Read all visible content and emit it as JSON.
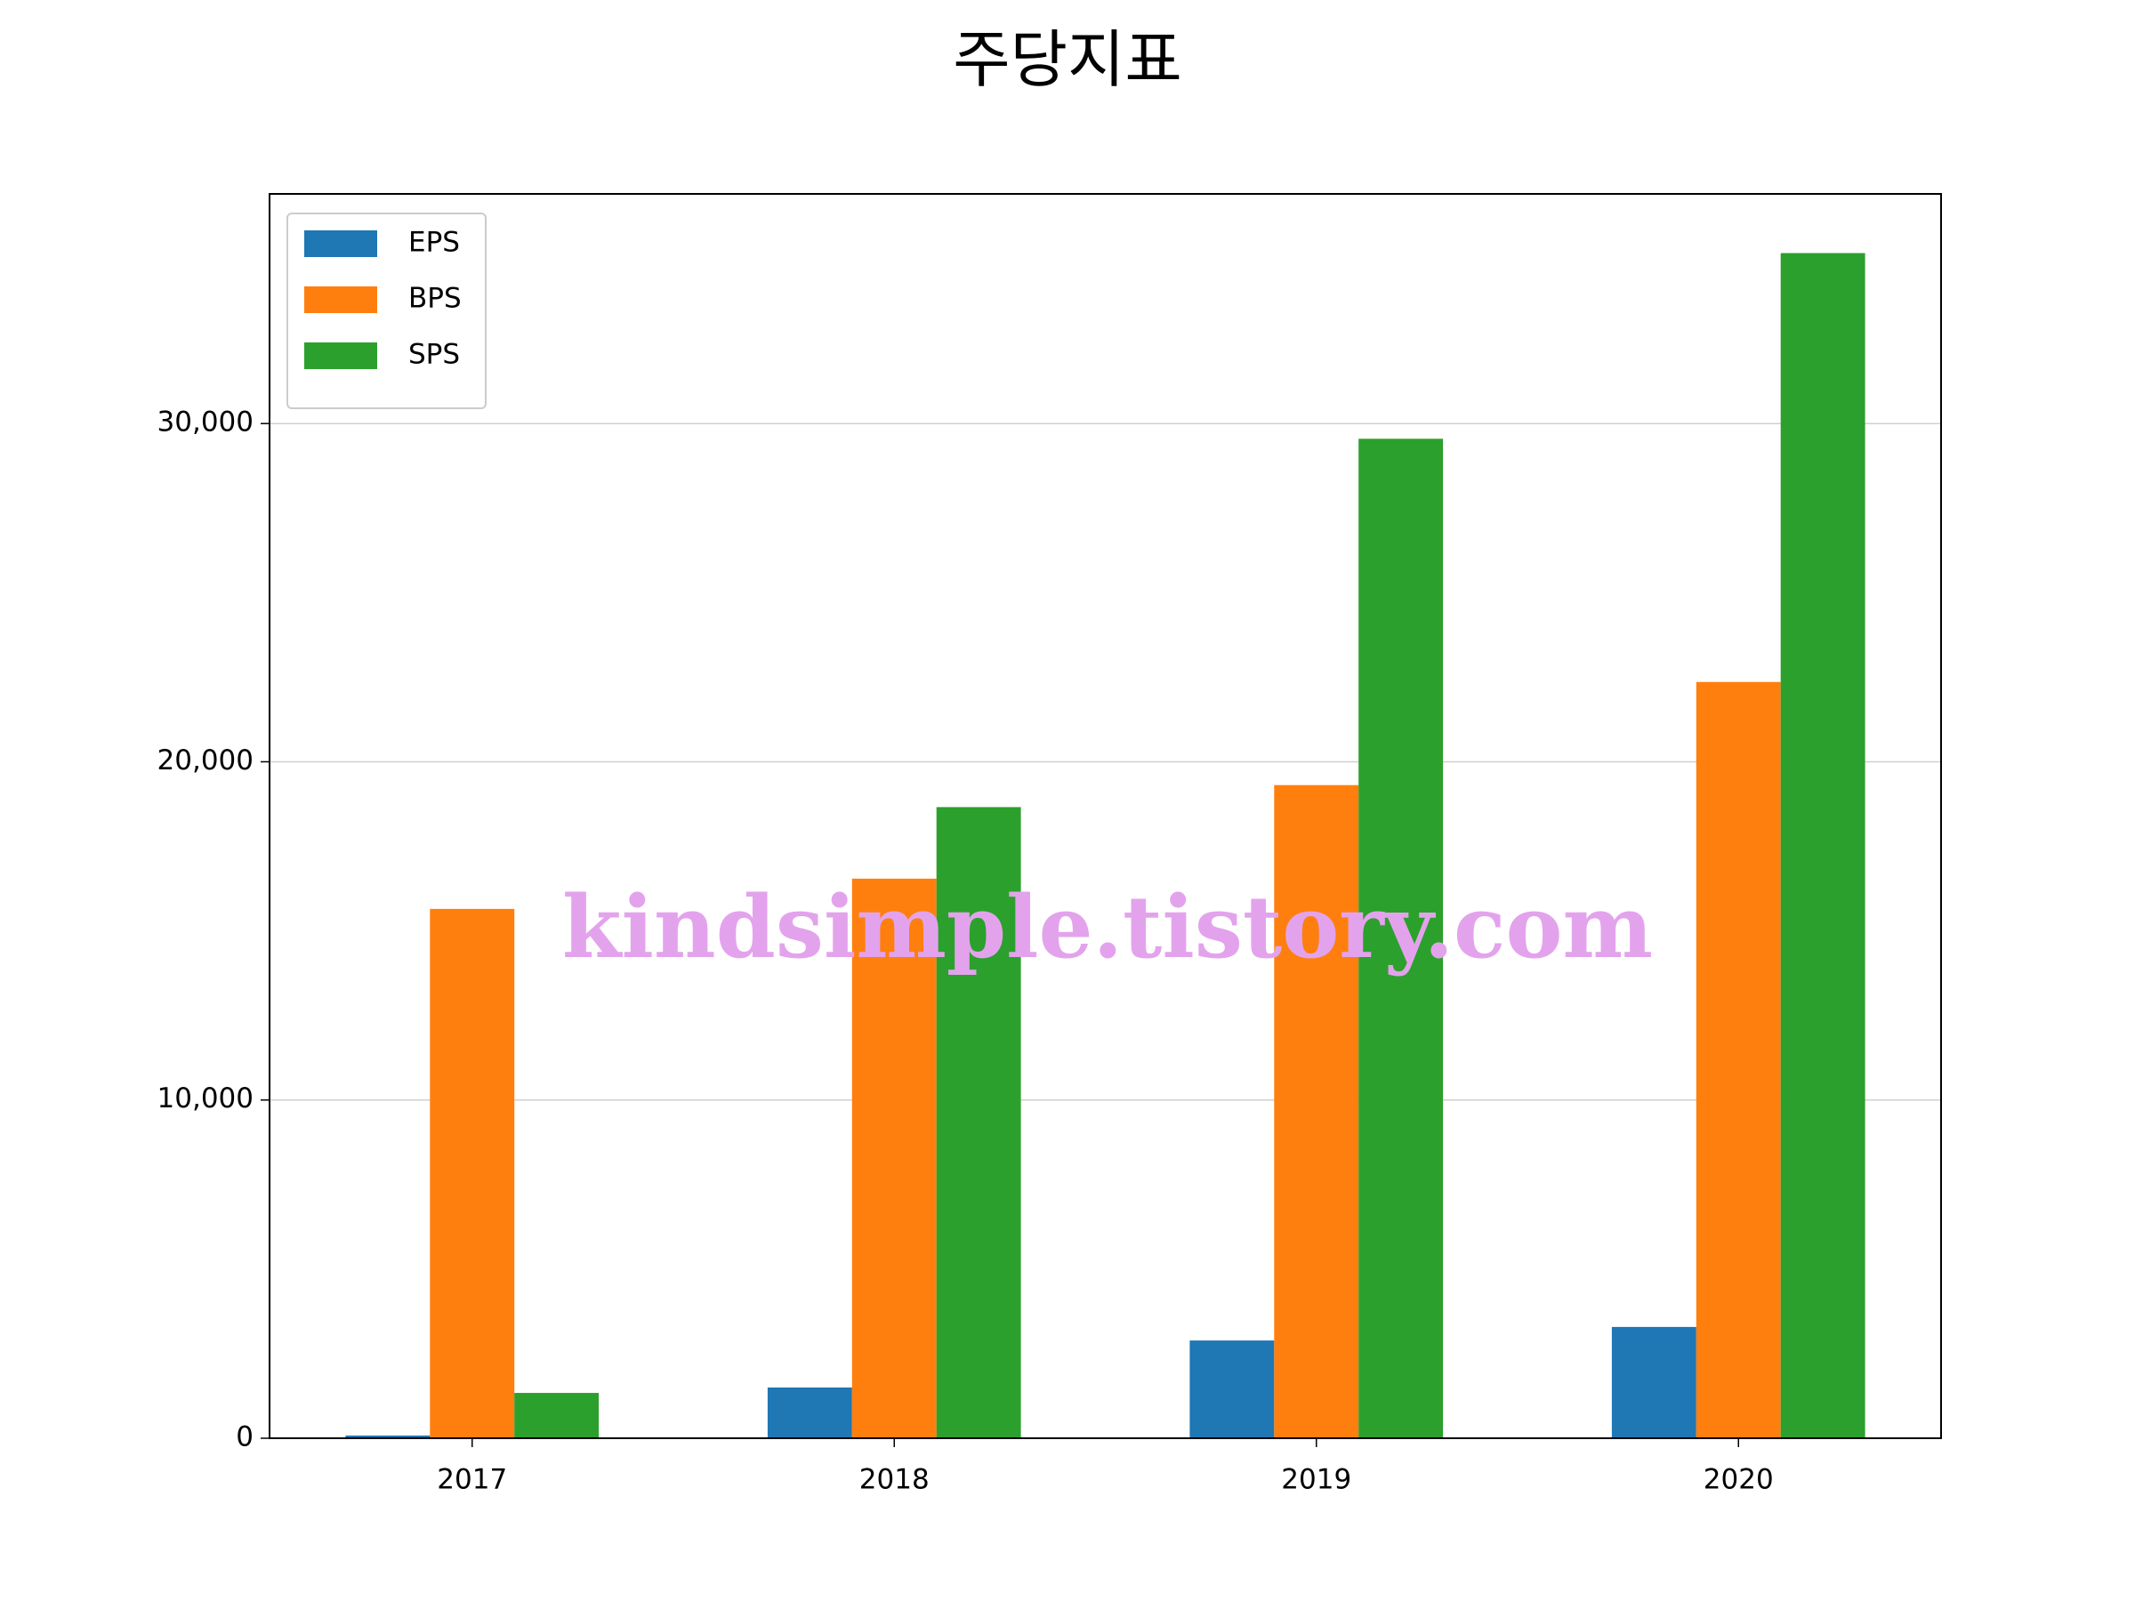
{
  "chart_data": {
    "type": "bar",
    "title": "주당지표",
    "categories": [
      "2017",
      "2018",
      "2019",
      "2020"
    ],
    "series": [
      {
        "name": "EPS",
        "color": "#1f77b4",
        "values": [
          80,
          1500,
          2890,
          3290
        ]
      },
      {
        "name": "BPS",
        "color": "#ff7f0e",
        "values": [
          15650,
          16545,
          19310,
          22360
        ]
      },
      {
        "name": "SPS",
        "color": "#2ca02c",
        "values": [
          1340,
          18660,
          29550,
          35040
        ]
      }
    ],
    "ylim": [
      0,
      36790
    ],
    "yticks": [
      0,
      {
        "value": 10000,
        "label": "10,000"
      },
      {
        "value": 20000,
        "label": "20,000"
      },
      {
        "value": 30000,
        "label": "30,000"
      }
    ],
    "grid": true,
    "legend": "upper left",
    "watermark": "kindsimple.tistory.com"
  }
}
